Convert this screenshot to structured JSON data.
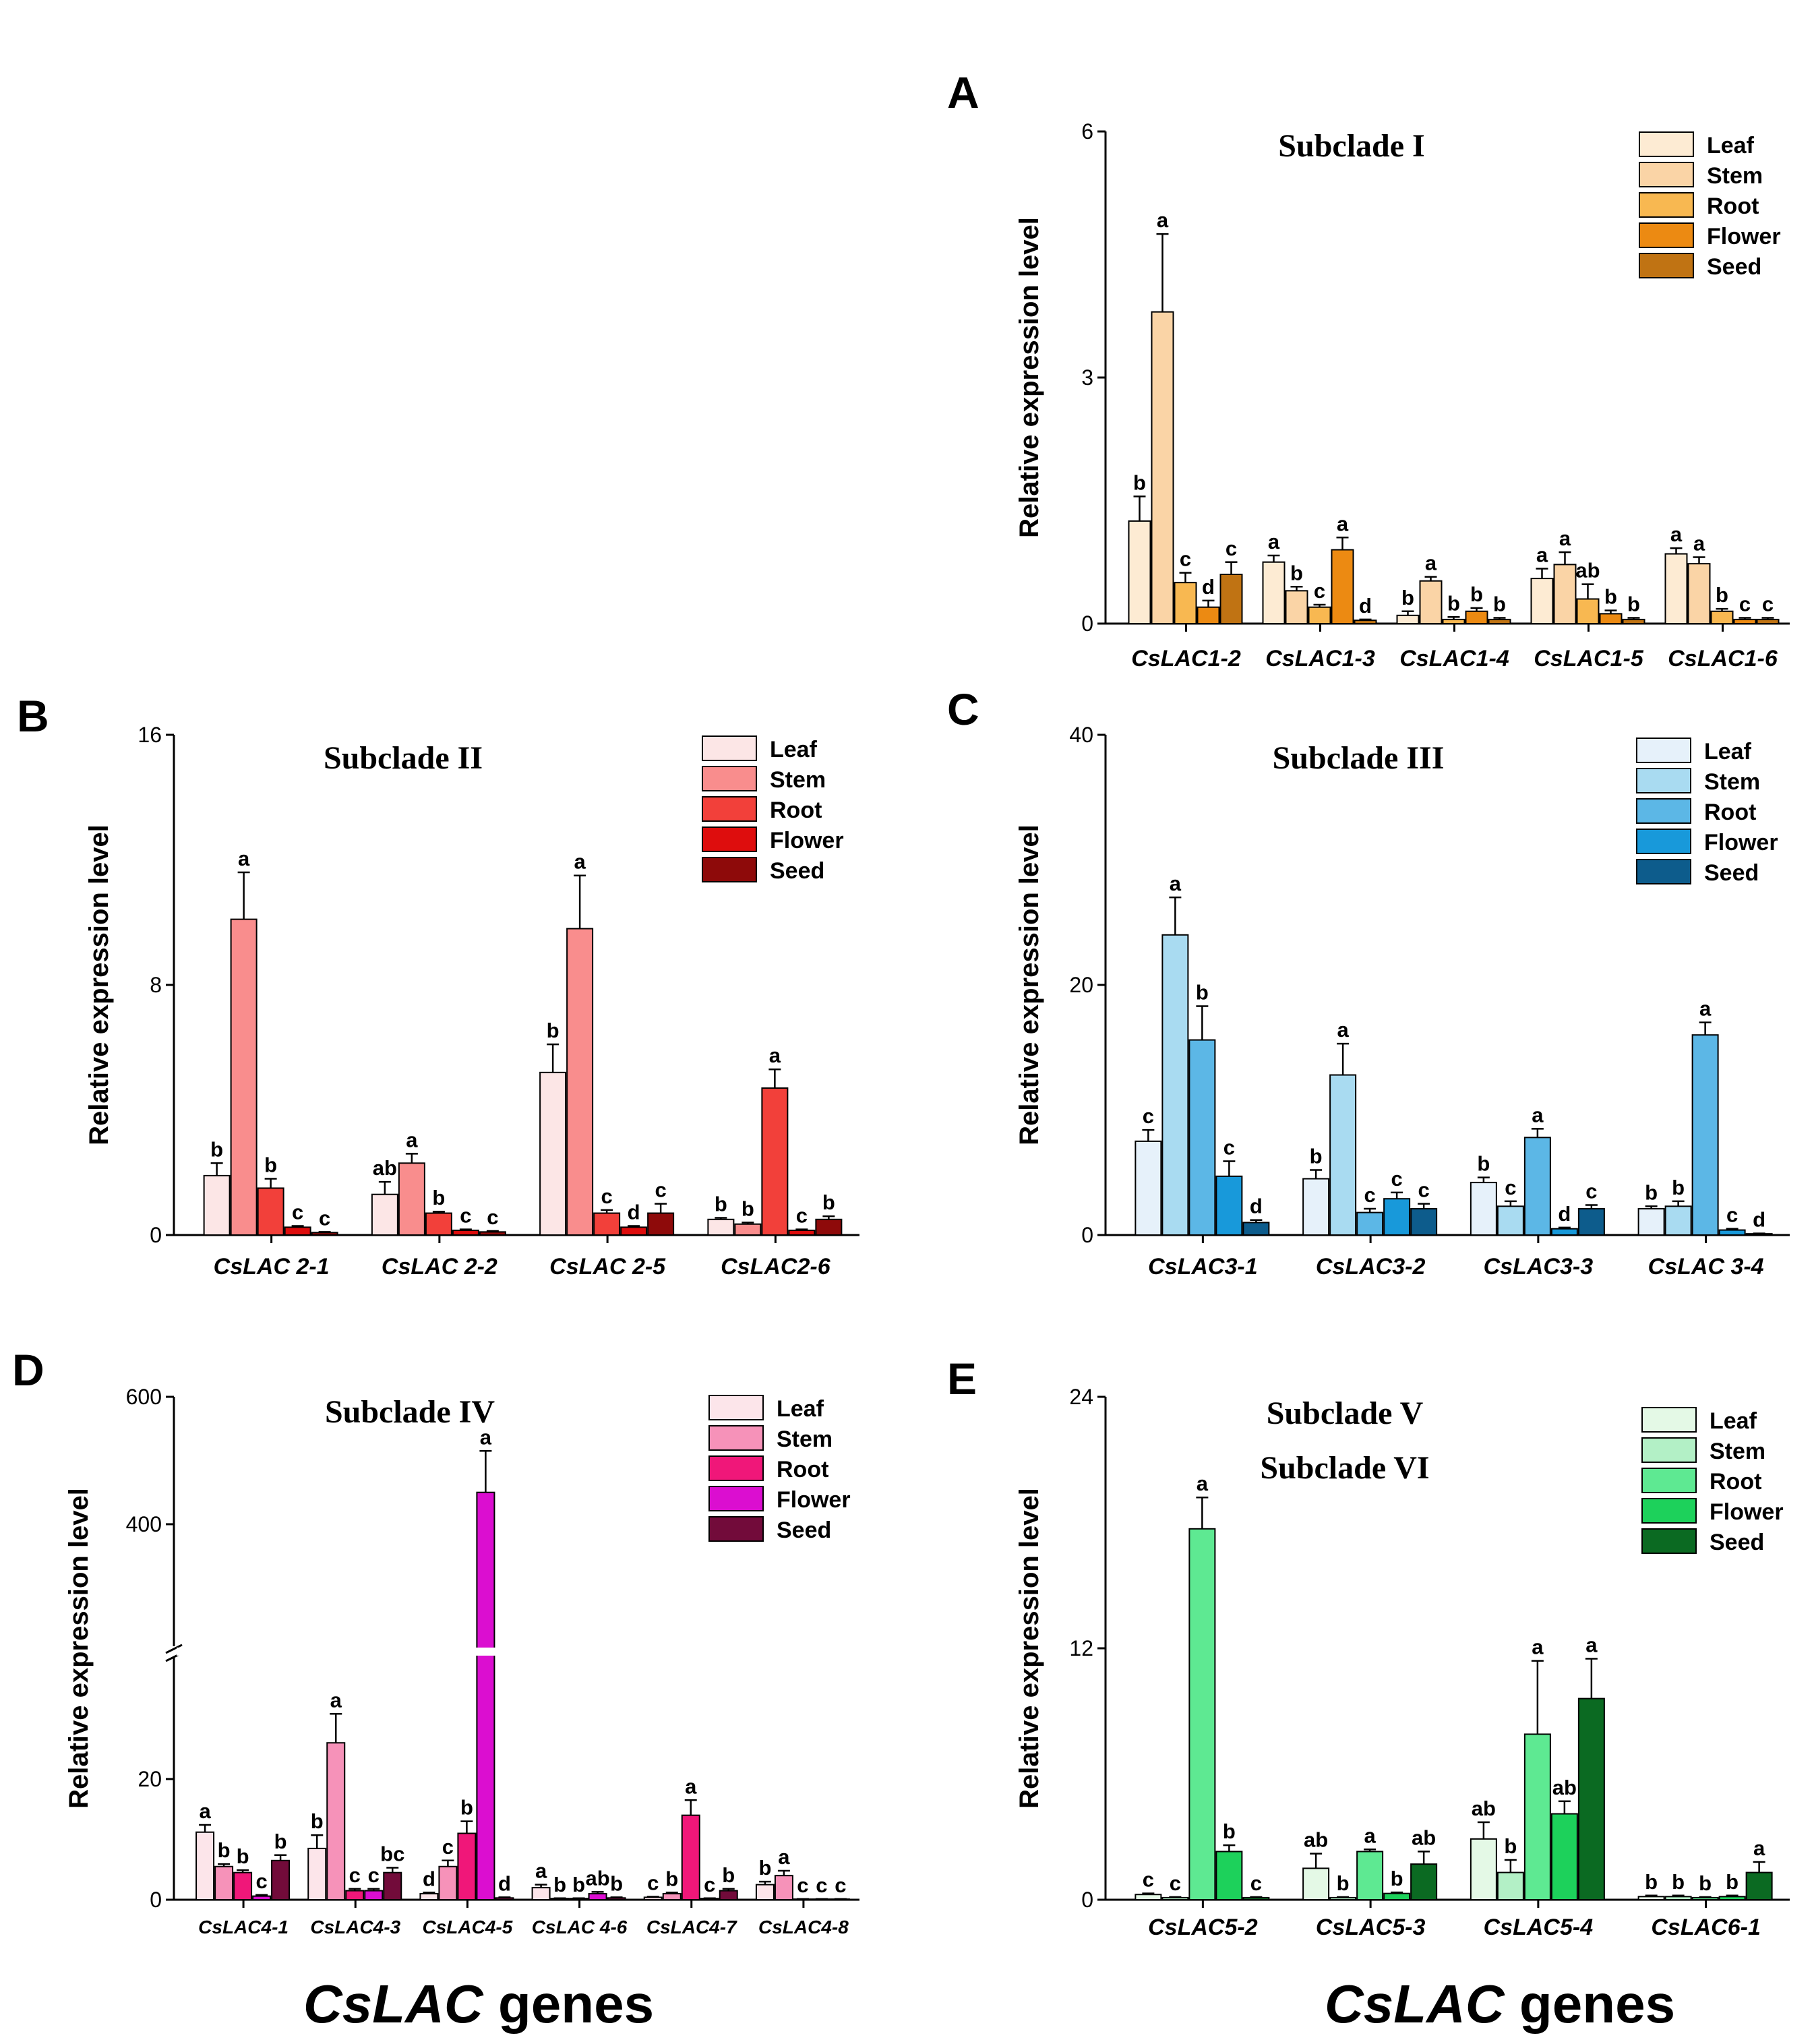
{
  "chart_data": [
    {
      "panel": "A",
      "type": "bar",
      "title": "Subclade I",
      "ylabel": "Relative expression level",
      "xlabel": "",
      "ylim": [
        0,
        6
      ],
      "yticks": [
        0,
        3,
        6
      ],
      "legend_position": "top-right",
      "categories": [
        "CsLAC1-2",
        "CsLAC1-3",
        "CsLAC1-4",
        "CsLAC1-5",
        "CsLAC1-6"
      ],
      "series": [
        {
          "name": "Leaf",
          "color": "#FDEBD3",
          "values": [
            1.25,
            0.75,
            0.1,
            0.55,
            0.85
          ],
          "errors": [
            0.3,
            0.08,
            0.05,
            0.12,
            0.07
          ],
          "letters": [
            "b",
            "a",
            "b",
            "a",
            "a"
          ]
        },
        {
          "name": "Stem",
          "color": "#FAD4A6",
          "values": [
            3.8,
            0.4,
            0.52,
            0.72,
            0.73
          ],
          "errors": [
            0.95,
            0.05,
            0.05,
            0.15,
            0.08
          ],
          "letters": [
            "a",
            "b",
            "a",
            "a",
            "a"
          ]
        },
        {
          "name": "Root",
          "color": "#F8B851",
          "values": [
            0.5,
            0.2,
            0.05,
            0.3,
            0.15
          ],
          "errors": [
            0.12,
            0.03,
            0.03,
            0.18,
            0.03
          ],
          "letters": [
            "c",
            "c",
            "b",
            "ab",
            "b"
          ]
        },
        {
          "name": "Flower",
          "color": "#EC8A12",
          "values": [
            0.2,
            0.9,
            0.15,
            0.12,
            0.05
          ],
          "errors": [
            0.08,
            0.15,
            0.04,
            0.04,
            0.02
          ],
          "letters": [
            "d",
            "a",
            "b",
            "b",
            "c"
          ]
        },
        {
          "name": "Seed",
          "color": "#C07313",
          "values": [
            0.6,
            0.04,
            0.05,
            0.05,
            0.05
          ],
          "errors": [
            0.15,
            0.01,
            0.02,
            0.02,
            0.02
          ],
          "letters": [
            "c",
            "d",
            "b",
            "b",
            "c"
          ]
        }
      ]
    },
    {
      "panel": "B",
      "type": "bar",
      "title": "Subclade II",
      "ylabel": "Relative expression level",
      "xlabel": "",
      "ylim": [
        0,
        16
      ],
      "yticks": [
        0,
        8,
        16
      ],
      "legend_position": "top-right",
      "categories": [
        "CsLAC 2-1",
        "CsLAC 2-2",
        "CsLAC 2-5",
        "CsLAC2-6"
      ],
      "series": [
        {
          "name": "Leaf",
          "color": "#FCE6E6",
          "values": [
            1.9,
            1.3,
            5.2,
            0.5
          ],
          "errors": [
            0.4,
            0.4,
            0.9,
            0.05
          ],
          "letters": [
            "b",
            "ab",
            "b",
            "b"
          ]
        },
        {
          "name": "Stem",
          "color": "#F98D8D",
          "values": [
            10.1,
            2.3,
            9.8,
            0.35
          ],
          "errors": [
            1.5,
            0.3,
            1.7,
            0.05
          ],
          "letters": [
            "a",
            "a",
            "a",
            "b"
          ]
        },
        {
          "name": "Root",
          "color": "#F2403A",
          "values": [
            1.5,
            0.7,
            0.7,
            4.7
          ],
          "errors": [
            0.3,
            0.05,
            0.1,
            0.6
          ],
          "letters": [
            "b",
            "b",
            "c",
            "a"
          ]
        },
        {
          "name": "Flower",
          "color": "#DE0D0D",
          "values": [
            0.25,
            0.15,
            0.25,
            0.15
          ],
          "errors": [
            0.04,
            0.03,
            0.04,
            0.03
          ],
          "letters": [
            "c",
            "c",
            "d",
            "c"
          ]
        },
        {
          "name": "Seed",
          "color": "#8E0A0A",
          "values": [
            0.08,
            0.1,
            0.7,
            0.5
          ],
          "errors": [
            0.02,
            0.03,
            0.3,
            0.1
          ],
          "letters": [
            "c",
            "c",
            "c",
            "b"
          ]
        }
      ]
    },
    {
      "panel": "C",
      "type": "bar",
      "title": "Subclade III",
      "ylabel": "Relative expression level",
      "xlabel": "",
      "ylim": [
        0,
        40
      ],
      "yticks": [
        0,
        20,
        40
      ],
      "legend_position": "top-right",
      "categories": [
        "CsLAC3-1",
        "CsLAC3-2",
        "CsLAC3-3",
        "CsLAC 3-4"
      ],
      "series": [
        {
          "name": "Leaf",
          "color": "#E6F1FA",
          "values": [
            7.5,
            4.5,
            4.2,
            2.1
          ],
          "errors": [
            0.9,
            0.7,
            0.4,
            0.2
          ],
          "letters": [
            "c",
            "b",
            "b",
            "b"
          ]
        },
        {
          "name": "Stem",
          "color": "#A9DBF1",
          "values": [
            24.0,
            12.8,
            2.3,
            2.3
          ],
          "errors": [
            3.0,
            2.5,
            0.4,
            0.4
          ],
          "letters": [
            "a",
            "a",
            "c",
            "b"
          ]
        },
        {
          "name": "Root",
          "color": "#5CB7E6",
          "values": [
            15.6,
            1.8,
            7.8,
            16.0
          ],
          "errors": [
            2.7,
            0.3,
            0.7,
            1.0
          ],
          "letters": [
            "b",
            "c",
            "a",
            "a"
          ]
        },
        {
          "name": "Flower",
          "color": "#1899DA",
          "values": [
            4.7,
            2.9,
            0.5,
            0.4
          ],
          "errors": [
            1.2,
            0.5,
            0.1,
            0.1
          ],
          "letters": [
            "c",
            "c",
            "d",
            "c"
          ]
        },
        {
          "name": "Seed",
          "color": "#0D5C8C",
          "values": [
            1.0,
            2.1,
            2.1,
            0.1
          ],
          "errors": [
            0.2,
            0.4,
            0.3,
            0.03
          ],
          "letters": [
            "d",
            "c",
            "c",
            "d"
          ]
        }
      ]
    },
    {
      "panel": "D",
      "type": "bar",
      "title": "Subclade IV",
      "ylabel": "Relative expression level",
      "xlabel": "CsLAC genes",
      "ylim": [
        0,
        600
      ],
      "yticks": [
        0,
        20,
        400,
        600
      ],
      "axis_break": {
        "lower_max": 40,
        "upper_min": 200
      },
      "legend_position": "top-right",
      "categories": [
        "CsLAC4-1",
        "CsLAC4-3",
        "CsLAC4-5",
        "CsLAC 4-6",
        "CsLAC4-7",
        "CsLAC4-8"
      ],
      "series": [
        {
          "name": "Leaf",
          "color": "#FCE5EA",
          "values": [
            11.2,
            8.5,
            1.0,
            2.0,
            0.4,
            2.5
          ],
          "errors": [
            1.2,
            2.2,
            0.2,
            0.5,
            0.1,
            0.5
          ],
          "letters": [
            "a",
            "b",
            "d",
            "a",
            "c",
            "b"
          ]
        },
        {
          "name": "Stem",
          "color": "#F692B9",
          "values": [
            5.5,
            26.0,
            5.5,
            0.2,
            1.0,
            4.0
          ],
          "errors": [
            0.4,
            4.8,
            1.0,
            0.05,
            0.2,
            0.8
          ],
          "letters": [
            "b",
            "a",
            "c",
            "b",
            "b",
            "a"
          ]
        },
        {
          "name": "Root",
          "color": "#F01779",
          "values": [
            4.5,
            1.5,
            11.0,
            0.2,
            14.0,
            0.1
          ],
          "errors": [
            0.4,
            0.3,
            2.0,
            0.05,
            2.5,
            0.03
          ],
          "letters": [
            "b",
            "c",
            "b",
            "b",
            "a",
            "c"
          ]
        },
        {
          "name": "Flower",
          "color": "#DB0ED0",
          "values": [
            0.6,
            1.5,
            450.0,
            1.0,
            0.2,
            0.1
          ],
          "errors": [
            0.2,
            0.3,
            65.0,
            0.3,
            0.05,
            0.03
          ],
          "letters": [
            "c",
            "c",
            "a",
            "ab",
            "c",
            "c"
          ]
        },
        {
          "name": "Seed",
          "color": "#720B3A",
          "values": [
            6.5,
            4.5,
            0.3,
            0.3,
            1.5,
            0.1
          ],
          "errors": [
            0.9,
            0.8,
            0.1,
            0.1,
            0.3,
            0.03
          ],
          "letters": [
            "b",
            "bc",
            "d",
            "b",
            "b",
            "c"
          ]
        }
      ]
    },
    {
      "panel": "E",
      "type": "bar",
      "title": "Subclade V",
      "title2": "Subclade VI",
      "ylabel": "Relative expression level",
      "xlabel": "CsLAC genes",
      "ylim": [
        0,
        24
      ],
      "yticks": [
        0,
        12,
        24
      ],
      "legend_position": "top-right",
      "categories": [
        "CsLAC5-2",
        "CsLAC5-3",
        "CsLAC5-4",
        "CsLAC6-1"
      ],
      "series": [
        {
          "name": "Leaf",
          "color": "#E4F9E6",
          "values": [
            0.25,
            1.5,
            2.9,
            0.15
          ],
          "errors": [
            0.05,
            0.7,
            0.8,
            0.05
          ],
          "letters": [
            "c",
            "ab",
            "ab",
            "b"
          ]
        },
        {
          "name": "Stem",
          "color": "#B3F0C6",
          "values": [
            0.1,
            0.1,
            1.3,
            0.15
          ],
          "errors": [
            0.03,
            0.03,
            0.6,
            0.05
          ],
          "letters": [
            "c",
            "b",
            "b",
            "b"
          ]
        },
        {
          "name": "Root",
          "color": "#5EE992",
          "values": [
            17.7,
            2.3,
            7.9,
            0.1
          ],
          "errors": [
            1.5,
            0.1,
            3.5,
            0.03
          ],
          "letters": [
            "a",
            "a",
            "a",
            "b"
          ]
        },
        {
          "name": "Flower",
          "color": "#1DD15B",
          "values": [
            2.3,
            0.3,
            4.1,
            0.15
          ],
          "errors": [
            0.3,
            0.05,
            0.6,
            0.05
          ],
          "letters": [
            "b",
            "b",
            "ab",
            "b"
          ]
        },
        {
          "name": "Seed",
          "color": "#0B6A22",
          "values": [
            0.1,
            1.7,
            9.6,
            1.3
          ],
          "errors": [
            0.03,
            0.6,
            1.9,
            0.5
          ],
          "letters": [
            "c",
            "ab",
            "a",
            "a"
          ]
        }
      ]
    }
  ],
  "bottom_labels": {
    "left": {
      "italic": "CsLAC",
      "plain": " genes"
    },
    "right": {
      "italic": "CsLAC",
      "plain": " genes"
    }
  }
}
